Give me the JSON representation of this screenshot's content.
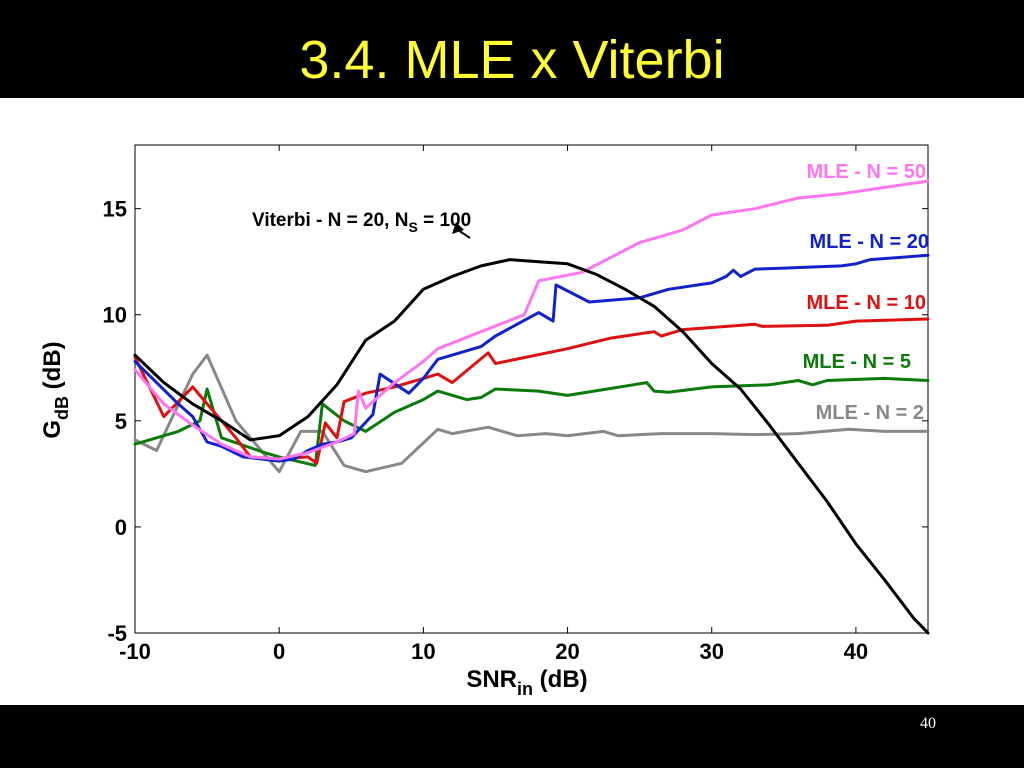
{
  "slide": {
    "title": "3.4. MLE x Viterbi",
    "page_number": "40"
  },
  "colors": {
    "title": "#ffff33",
    "bars": "#000000"
  },
  "chart_data": {
    "type": "line",
    "xlabel_main": "SNR",
    "xlabel_sub": "in",
    "xlabel_unit": " (dB)",
    "ylabel_main": "G",
    "ylabel_sub": "dB",
    "ylabel_unit": " (dB)",
    "xlim": [
      -10,
      45
    ],
    "ylim": [
      -5,
      18
    ],
    "xticks": [
      -10,
      0,
      10,
      20,
      30,
      40
    ],
    "yticks": [
      -5,
      0,
      5,
      10,
      15
    ],
    "grid": false,
    "series": [
      {
        "name": "MLE - N = 2",
        "color": "#888888",
        "x": [
          -10,
          -8.5,
          -6,
          -5,
          -3,
          0,
          1.5,
          3,
          4.5,
          6,
          8.5,
          11,
          12,
          14.5,
          16.5,
          18.5,
          20,
          22.5,
          23.5,
          26.5,
          30,
          33,
          36,
          39.5,
          42,
          45
        ],
        "y": [
          4.1,
          3.6,
          7.2,
          8.1,
          5.0,
          2.6,
          4.5,
          4.5,
          2.9,
          2.6,
          3.0,
          4.6,
          4.4,
          4.7,
          4.3,
          4.4,
          4.3,
          4.5,
          4.3,
          4.4,
          4.4,
          4.35,
          4.4,
          4.6,
          4.5,
          4.5
        ]
      },
      {
        "name": "MLE - N = 5",
        "color": "#0a7a0a",
        "x": [
          -10,
          -7,
          -5.5,
          -5,
          -4,
          -1,
          0,
          2.5,
          3,
          4.5,
          6,
          8,
          10,
          11,
          13,
          14,
          15,
          18,
          20,
          25.5,
          26,
          27,
          30,
          34,
          36,
          37,
          38,
          42,
          45
        ],
        "y": [
          3.9,
          4.5,
          5.0,
          6.5,
          4.2,
          3.5,
          3.3,
          2.9,
          5.8,
          5.0,
          4.5,
          5.4,
          6.0,
          6.4,
          6.0,
          6.1,
          6.5,
          6.4,
          6.2,
          6.8,
          6.4,
          6.35,
          6.6,
          6.7,
          6.9,
          6.7,
          6.9,
          7.0,
          6.9
        ]
      },
      {
        "name": "MLE - N = 10",
        "color": "#dd1111",
        "x": [
          -10,
          -8,
          -6,
          -3,
          -2,
          0,
          2,
          2.6,
          3.2,
          4,
          4.5,
          6,
          8,
          10,
          11,
          12,
          14.5,
          15,
          20,
          23,
          26,
          26.5,
          28,
          30,
          33,
          33.5,
          38,
          40,
          45
        ],
        "y": [
          8.0,
          5.2,
          6.6,
          4.2,
          3.3,
          3.2,
          3.3,
          3.0,
          4.9,
          4.2,
          5.9,
          6.3,
          6.6,
          7.0,
          7.2,
          6.8,
          8.2,
          7.7,
          8.4,
          8.9,
          9.2,
          9.0,
          9.3,
          9.4,
          9.55,
          9.45,
          9.5,
          9.7,
          9.8
        ]
      },
      {
        "name": "MLE - N = 20",
        "color": "#1122cc",
        "x": [
          -10,
          -7,
          -6,
          -5,
          -4,
          -2.5,
          0,
          1,
          2,
          3,
          4,
          5,
          6.5,
          7,
          9,
          10,
          11,
          14,
          15,
          18,
          19,
          19.2,
          21.5,
          25,
          27,
          30,
          31,
          31.5,
          32,
          33,
          35,
          39,
          40,
          41,
          45
        ],
        "y": [
          7.8,
          5.8,
          5.2,
          4.0,
          3.8,
          3.3,
          3.1,
          3.2,
          3.6,
          3.9,
          4.0,
          4.2,
          5.3,
          7.2,
          6.3,
          7.0,
          7.9,
          8.5,
          9.0,
          10.1,
          9.7,
          11.4,
          10.6,
          10.8,
          11.2,
          11.5,
          11.8,
          12.1,
          11.8,
          12.15,
          12.2,
          12.3,
          12.4,
          12.6,
          12.8
        ]
      },
      {
        "name": "MLE - N = 50",
        "color": "#ff77ee",
        "x": [
          -10,
          -8,
          -6,
          -4,
          -2,
          0,
          2,
          4,
          5.2,
          5.5,
          6,
          8,
          10,
          11,
          14,
          17,
          18,
          21,
          25,
          28,
          30,
          33,
          36,
          39,
          42,
          45
        ],
        "y": [
          7.4,
          5.8,
          4.8,
          3.9,
          3.3,
          3.2,
          3.5,
          4.0,
          4.4,
          6.4,
          5.6,
          6.8,
          7.8,
          8.4,
          9.2,
          10.0,
          11.6,
          12.0,
          13.4,
          14.0,
          14.7,
          15.0,
          15.5,
          15.7,
          16.0,
          16.3
        ]
      },
      {
        "name": "Viterbi - N = 20, N",
        "name_sub": "S",
        "name_tail": " = 100",
        "color": "#000000",
        "x": [
          -10,
          -8,
          -6,
          -4,
          -2,
          0,
          2,
          4,
          6,
          8,
          10,
          12,
          14,
          16,
          18,
          20,
          22,
          24,
          26,
          28,
          30,
          32,
          34,
          36,
          38,
          40,
          42,
          44,
          45
        ],
        "y": [
          8.1,
          6.8,
          5.8,
          5.0,
          4.1,
          4.3,
          5.2,
          6.7,
          8.8,
          9.7,
          11.2,
          11.8,
          12.3,
          12.6,
          12.5,
          12.4,
          11.9,
          11.2,
          10.4,
          9.2,
          7.7,
          6.5,
          4.8,
          3.0,
          1.2,
          -0.8,
          -2.5,
          -4.3,
          -5.0
        ]
      }
    ]
  }
}
